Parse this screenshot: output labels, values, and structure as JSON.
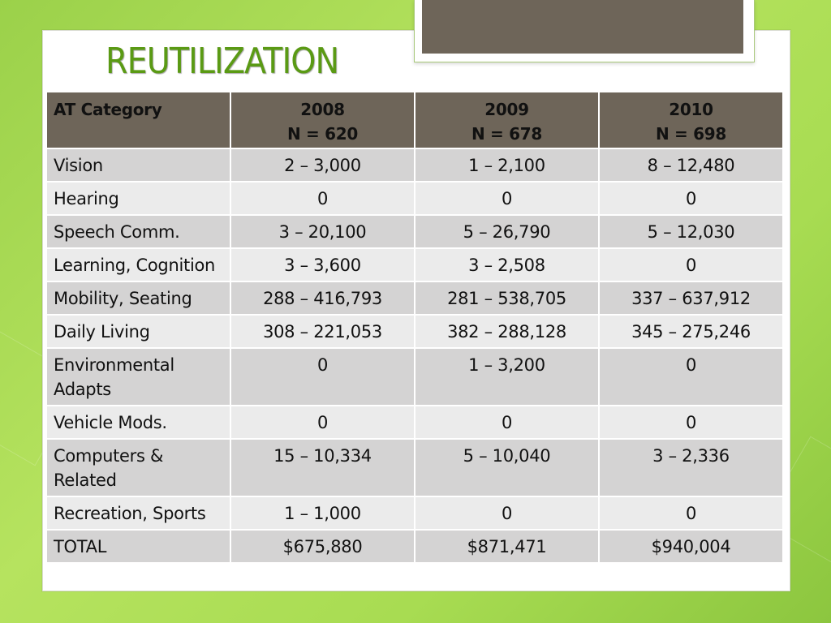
{
  "slide": {
    "title": "REUTILIZATION"
  },
  "table": {
    "headers": [
      {
        "line1": "AT Category",
        "line2": ""
      },
      {
        "line1": "2008",
        "line2": "N = 620"
      },
      {
        "line1": "2009",
        "line2": "N = 678"
      },
      {
        "line1": "2010",
        "line2": "N = 698"
      }
    ],
    "rows": [
      {
        "category": "Vision",
        "y2008": "2 – 3,000",
        "y2009": "1 – 2,100",
        "y2010": "8 – 12,480"
      },
      {
        "category": "Hearing",
        "y2008": "0",
        "y2009": "0",
        "y2010": "0"
      },
      {
        "category": "Speech Comm.",
        "y2008": "3 – 20,100",
        "y2009": "5 – 26,790",
        "y2010": "5 – 12,030"
      },
      {
        "category": "Learning, Cognition",
        "y2008": "3 – 3,600",
        "y2009": "3 – 2,508",
        "y2010": "0"
      },
      {
        "category": "Mobility, Seating",
        "y2008": "288 – 416,793",
        "y2009": "281 – 538,705",
        "y2010": "337 – 637,912"
      },
      {
        "category": "Daily Living",
        "y2008": "308 – 221,053",
        "y2009": "382 – 288,128",
        "y2010": "345 – 275,246"
      },
      {
        "category": "Environmental Adapts",
        "y2008": "0",
        "y2009": "1 – 3,200",
        "y2010": "0"
      },
      {
        "category": "Vehicle Mods.",
        "y2008": "0",
        "y2009": "0",
        "y2010": "0"
      },
      {
        "category": "Computers & Related",
        "y2008": "15 – 10,334",
        "y2009": "5 – 10,040",
        "y2010": "3 – 2,336"
      },
      {
        "category": "Recreation, Sports",
        "y2008": "1 – 1,000",
        "y2009": "0",
        "y2010": "0"
      },
      {
        "category": "TOTAL",
        "y2008": "$675,880",
        "y2009": "$871,471",
        "y2010": "$940,004"
      }
    ]
  },
  "colors": {
    "title": "#5a9a14",
    "header_bg": "#6e6559",
    "row_dark": "#d4d3d3",
    "row_light": "#ebebeb",
    "background": "#a8dc52"
  }
}
